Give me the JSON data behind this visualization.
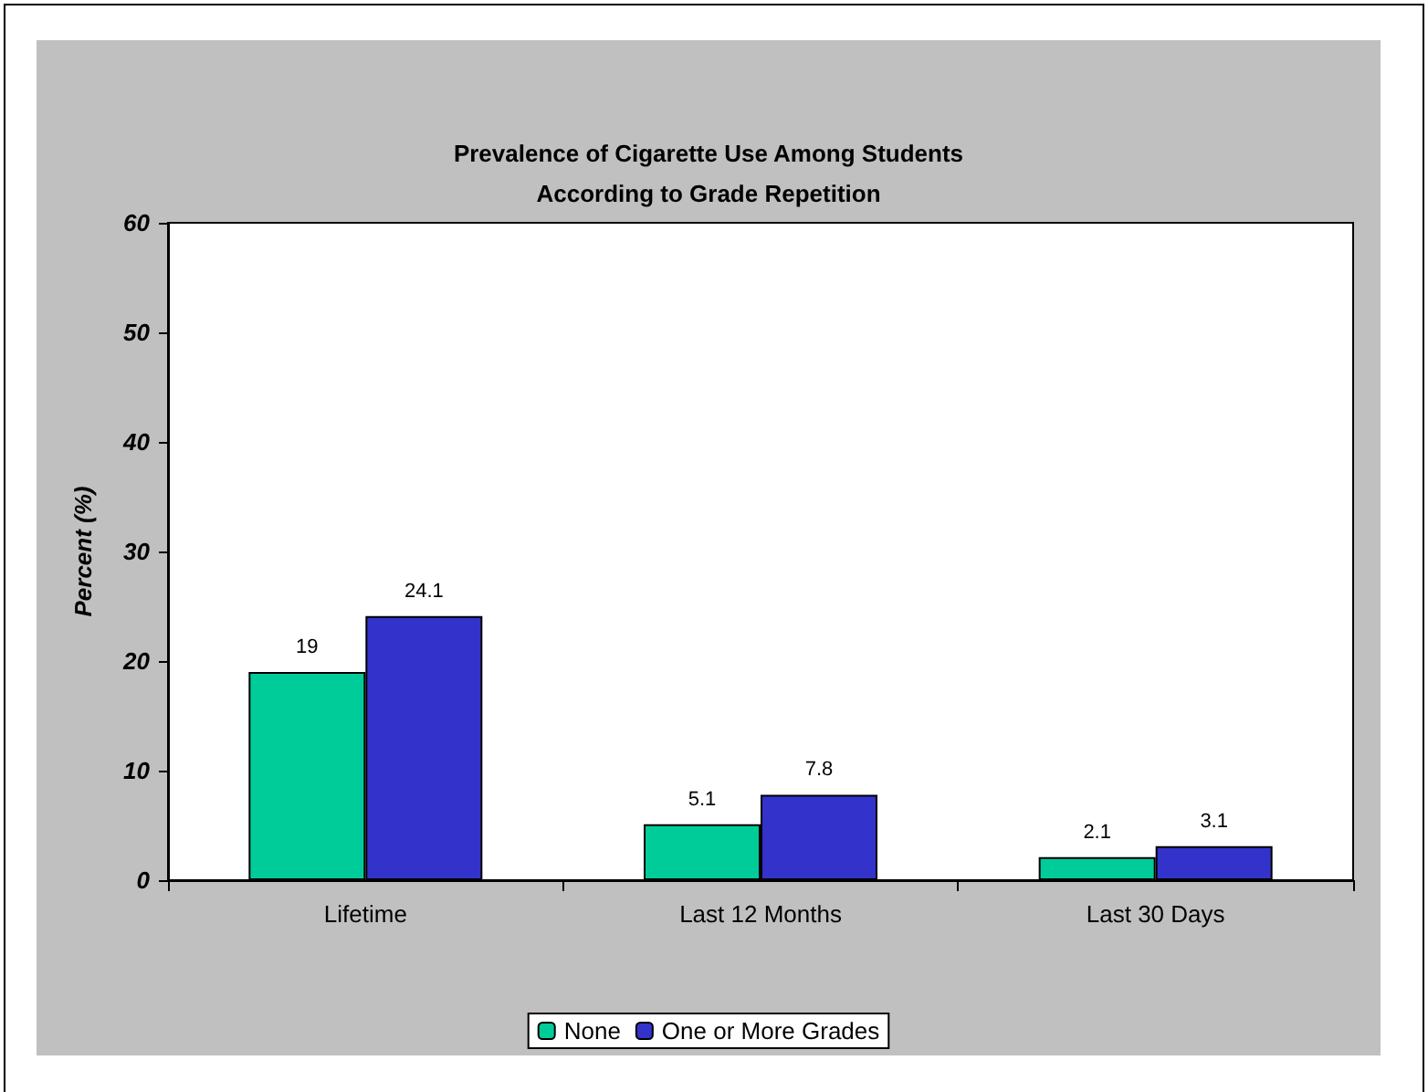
{
  "chart_data": {
    "type": "bar",
    "title": "Prevalence of Cigarette Use Among Students\nAccording to Grade Repetition",
    "ylabel": "Percent (%)",
    "categories": [
      "Lifetime",
      "Last 12 Months",
      "Last 30 Days"
    ],
    "series": [
      {
        "name": "None",
        "color": "#00cc99",
        "values": [
          19,
          5.1,
          2.1
        ]
      },
      {
        "name": "One or More Grades",
        "color": "#3333cc",
        "values": [
          24.1,
          7.8,
          3.1
        ]
      }
    ],
    "ylim": [
      0,
      60
    ],
    "yticks": [
      0,
      10,
      20,
      30,
      40,
      50,
      60
    ],
    "grid": false,
    "legend": "bottom",
    "data_labels": true
  }
}
